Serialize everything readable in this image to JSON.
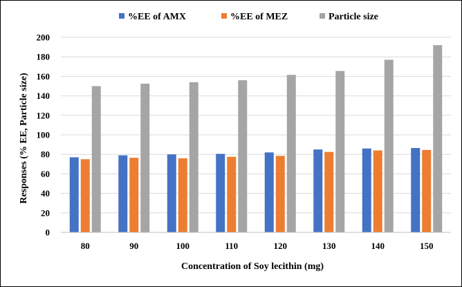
{
  "chart_data": {
    "type": "bar",
    "title": "",
    "xlabel": "Concentration of Soy lecithin (mg)",
    "ylabel": "Responses (% EE, Particle size)",
    "categories": [
      "80",
      "90",
      "100",
      "110",
      "120",
      "130",
      "140",
      "150"
    ],
    "series": [
      {
        "name": "%EE of AMX",
        "color": "#4472C4",
        "values": [
          77,
          79,
          80,
          80.5,
          82,
          85,
          86,
          86.5
        ]
      },
      {
        "name": "%EE of MEZ",
        "color": "#ED7D31",
        "values": [
          75,
          76.5,
          76,
          77.5,
          78.5,
          82.5,
          84,
          84.5
        ]
      },
      {
        "name": "Particle size",
        "color": "#A5A5A5",
        "values": [
          150,
          152.5,
          154,
          156,
          161.5,
          165.5,
          177,
          192
        ]
      }
    ],
    "ylim": [
      0,
      200
    ],
    "yticks": [
      0,
      20,
      40,
      60,
      80,
      100,
      120,
      140,
      160,
      180,
      200
    ],
    "grid": true,
    "legend": "top-center"
  }
}
